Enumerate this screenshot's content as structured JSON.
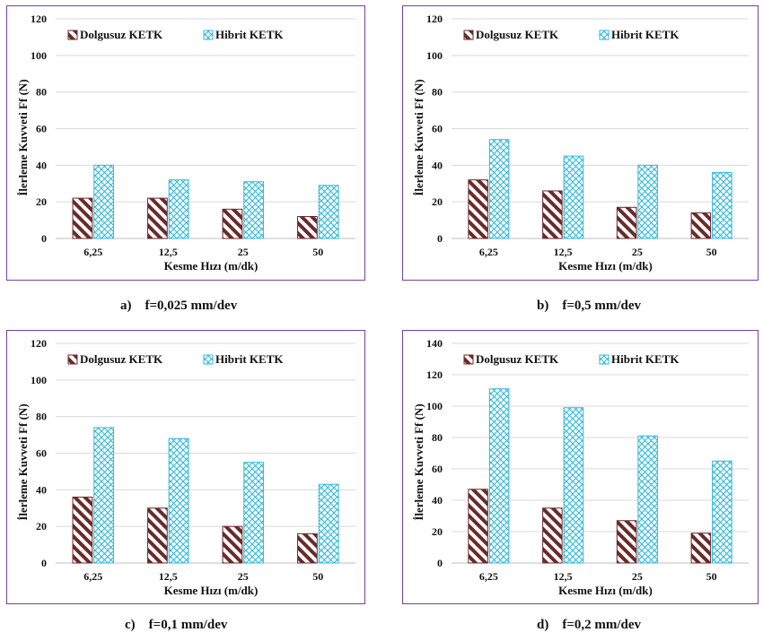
{
  "colors": {
    "frame": "#7a3fa0",
    "dolgusuz": "#6b2a2a",
    "hibrit": "#2fb8dc",
    "gridline": "#d9d9d9"
  },
  "legend": {
    "series1": "Dolgusuz  KETK",
    "series2": "Hibrit  KETK"
  },
  "captions": [
    "a)    f=0,025 mm/dev",
    "b)    f=0,5 mm/dev",
    "c)    f=0,1 mm/dev",
    "d)    f=0,2 mm/dev"
  ],
  "chart_data": [
    {
      "type": "bar",
      "categories": [
        "6,25",
        "12,5",
        "25",
        "50"
      ],
      "series": [
        {
          "name": "Dolgusuz  KETK",
          "values": [
            22,
            22,
            16,
            12
          ]
        },
        {
          "name": "Hibrit  KETK",
          "values": [
            40,
            32,
            31,
            29
          ]
        }
      ],
      "xlabel": "Kesme Hızı  (m/dk)",
      "ylabel": "İlerleme Kuvveti Ff (N)",
      "ylim": [
        0,
        120
      ],
      "yticks": [
        "0",
        "20",
        "40",
        "60",
        "80",
        "100",
        "120"
      ],
      "grid": true,
      "legend_position": "top-left"
    },
    {
      "type": "bar",
      "categories": [
        "6,25",
        "12,5",
        "25",
        "50"
      ],
      "series": [
        {
          "name": "Dolgusuz  KETK",
          "values": [
            32,
            26,
            17,
            14
          ]
        },
        {
          "name": "Hibrit  KETK",
          "values": [
            54,
            45,
            40,
            36
          ]
        }
      ],
      "xlabel": "Kesme Hızı  (m/dk)",
      "ylabel": "İlerleme Kuvveti Ff (N)",
      "ylim": [
        0,
        120
      ],
      "yticks": [
        "0",
        "20",
        "40",
        "60",
        "80",
        "100",
        "120"
      ],
      "grid": true,
      "legend_position": "top-left"
    },
    {
      "type": "bar",
      "categories": [
        "6,25",
        "12,5",
        "25",
        "50"
      ],
      "series": [
        {
          "name": "Dolgusuz  KETK",
          "values": [
            36,
            30,
            20,
            16
          ]
        },
        {
          "name": "Hibrit  KETK",
          "values": [
            74,
            68,
            55,
            43
          ]
        }
      ],
      "xlabel": "Kesme Hızı  (m/dk)",
      "ylabel": "İlerleme Kuvveti Ff (N)",
      "ylim": [
        0,
        120
      ],
      "yticks": [
        "0",
        "20",
        "40",
        "60",
        "80",
        "100",
        "120"
      ],
      "grid": true,
      "legend_position": "top-left"
    },
    {
      "type": "bar",
      "categories": [
        "6,25",
        "12,5",
        "25",
        "50"
      ],
      "series": [
        {
          "name": "Dolgusuz  KETK",
          "values": [
            47,
            35,
            27,
            19
          ]
        },
        {
          "name": "Hibrit  KETK",
          "values": [
            111,
            99,
            81,
            65
          ]
        }
      ],
      "xlabel": "Kesme Hızı  (m/dk)",
      "ylabel": "İlerleme Kuvveti Ff (N)",
      "ylim": [
        0,
        140
      ],
      "yticks": [
        "0",
        "20",
        "40",
        "60",
        "80",
        "100",
        "120",
        "140"
      ],
      "grid": true,
      "legend_position": "top-left"
    }
  ]
}
